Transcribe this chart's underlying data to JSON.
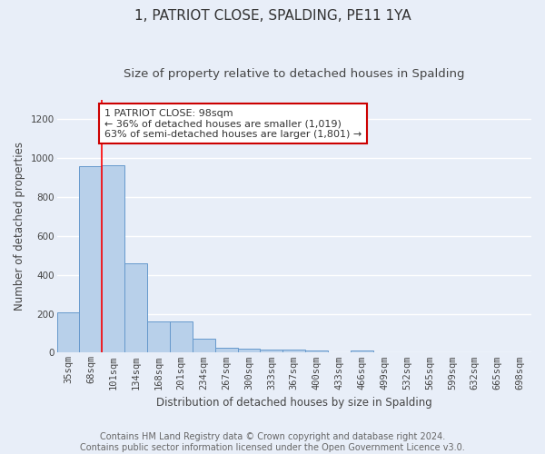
{
  "title": "1, PATRIOT CLOSE, SPALDING, PE11 1YA",
  "subtitle": "Size of property relative to detached houses in Spalding",
  "xlabel": "Distribution of detached houses by size in Spalding",
  "ylabel": "Number of detached properties",
  "bar_labels": [
    "35sqm",
    "68sqm",
    "101sqm",
    "134sqm",
    "168sqm",
    "201sqm",
    "234sqm",
    "267sqm",
    "300sqm",
    "333sqm",
    "367sqm",
    "400sqm",
    "433sqm",
    "466sqm",
    "499sqm",
    "532sqm",
    "565sqm",
    "599sqm",
    "632sqm",
    "665sqm",
    "698sqm"
  ],
  "bar_values": [
    205,
    960,
    965,
    460,
    160,
    160,
    70,
    25,
    20,
    15,
    15,
    10,
    0,
    12,
    0,
    0,
    0,
    0,
    0,
    0,
    0
  ],
  "bar_color": "#b8d0ea",
  "bar_edge_color": "#6699cc",
  "ylim": [
    0,
    1300
  ],
  "yticks": [
    0,
    200,
    400,
    600,
    800,
    1000,
    1200
  ],
  "red_line_x": 2,
  "annotation_text": "1 PATRIOT CLOSE: 98sqm\n← 36% of detached houses are smaller (1,019)\n63% of semi-detached houses are larger (1,801) →",
  "annotation_box_color": "#ffffff",
  "annotation_box_edge": "#cc0000",
  "footer_text": "Contains HM Land Registry data © Crown copyright and database right 2024.\nContains public sector information licensed under the Open Government Licence v3.0.",
  "background_color": "#e8eef8",
  "grid_color": "#ffffff",
  "title_fontsize": 11,
  "subtitle_fontsize": 9.5,
  "axis_label_fontsize": 8.5,
  "tick_fontsize": 7.5,
  "annotation_fontsize": 8,
  "footer_fontsize": 7
}
